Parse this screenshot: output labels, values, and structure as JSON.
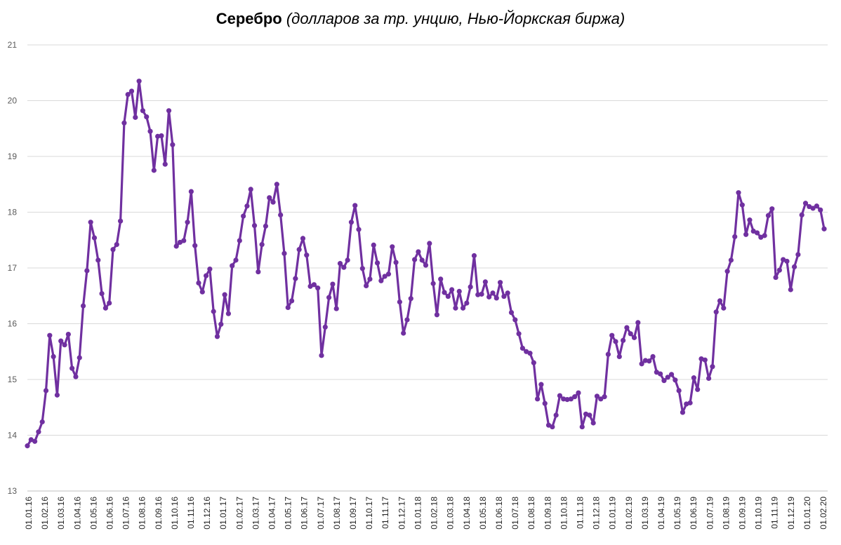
{
  "chart_data": {
    "type": "line",
    "title": "Серебро",
    "subtitle": "(долларов за тр. унцию, Нью-Йоркская биржа)",
    "xlabel": "",
    "ylabel": "",
    "ylim": [
      13,
      21
    ],
    "y_ticks": [
      "13",
      "14",
      "15",
      "16",
      "17",
      "18",
      "19",
      "20",
      "21"
    ],
    "grid": true,
    "legend": "none",
    "x_tick_labels": [
      "01.01.16",
      "01.02.16",
      "01.03.16",
      "01.04.16",
      "01.05.16",
      "01.06.16",
      "01.07.16",
      "01.08.16",
      "01.09.16",
      "01.10.16",
      "01.11.16",
      "01.12.16",
      "01.01.17",
      "01.02.17",
      "01.03.17",
      "01.04.17",
      "01.05.17",
      "01.06.17",
      "01.07.17",
      "01.08.17",
      "01.09.17",
      "01.10.17",
      "01.11.17",
      "01.12.17",
      "01.01.18",
      "01.02.18",
      "01.03.18",
      "01.04.18",
      "01.05.18",
      "01.06.18",
      "01.07.18",
      "01.08.18",
      "01.09.18",
      "01.10.18",
      "01.11.18",
      "01.12.18",
      "01.01.19",
      "01.02.19",
      "01.03.19",
      "01.04.19",
      "01.05.19",
      "01.06.19",
      "01.07.19",
      "01.08.19",
      "01.09.19",
      "01.10.19",
      "01.11.19",
      "01.12.19",
      "01.01.20",
      "01.02.20"
    ],
    "series": [
      {
        "name": "",
        "color": "#7030A0",
        "values": [
          13.81,
          13.92,
          13.89,
          14.06,
          14.24,
          14.8,
          15.79,
          15.41,
          14.72,
          15.69,
          15.62,
          15.81,
          15.2,
          15.05,
          15.39,
          16.32,
          16.95,
          17.82,
          17.54,
          17.14,
          16.54,
          16.28,
          16.37,
          17.33,
          17.42,
          17.84,
          19.6,
          20.11,
          20.17,
          19.7,
          20.35,
          19.82,
          19.71,
          19.45,
          18.75,
          19.36,
          19.37,
          18.86,
          19.82,
          19.21,
          17.39,
          17.46,
          17.49,
          17.82,
          18.37,
          17.4,
          16.73,
          16.57,
          16.86,
          16.98,
          16.22,
          15.77,
          15.99,
          16.52,
          16.18,
          17.04,
          17.14,
          17.49,
          17.93,
          18.11,
          18.41,
          17.76,
          16.93,
          17.42,
          17.75,
          18.26,
          18.18,
          18.5,
          17.95,
          17.26,
          16.29,
          16.41,
          16.81,
          17.33,
          17.53,
          17.23,
          16.67,
          16.7,
          16.64,
          15.43,
          15.94,
          16.47,
          16.71,
          16.27,
          17.08,
          17.01,
          17.14,
          17.82,
          18.12,
          17.69,
          16.99,
          16.68,
          16.8,
          17.41,
          17.09,
          16.77,
          16.85,
          16.89,
          17.38,
          17.1,
          16.39,
          15.83,
          16.07,
          16.45,
          17.15,
          17.29,
          17.14,
          17.05,
          17.44,
          16.72,
          16.16,
          16.8,
          16.56,
          16.49,
          16.61,
          16.28,
          16.58,
          16.28,
          16.37,
          16.66,
          17.22,
          16.52,
          16.53,
          16.75,
          16.48,
          16.55,
          16.46,
          16.74,
          16.49,
          16.55,
          16.2,
          16.07,
          15.82,
          15.56,
          15.5,
          15.47,
          15.3,
          14.65,
          14.91,
          14.57,
          14.18,
          14.15,
          14.36,
          14.71,
          14.65,
          14.64,
          14.65,
          14.69,
          14.76,
          14.15,
          14.38,
          14.36,
          14.22,
          14.7,
          14.65,
          14.69,
          15.45,
          15.79,
          15.68,
          15.41,
          15.7,
          15.93,
          15.82,
          15.75,
          16.02,
          15.28,
          15.34,
          15.33,
          15.41,
          15.13,
          15.1,
          14.98,
          15.04,
          15.09,
          14.99,
          14.8,
          14.41,
          14.56,
          14.58,
          15.03,
          14.82,
          15.37,
          15.35,
          15.02,
          15.23,
          16.21,
          16.41,
          16.28,
          16.94,
          17.14,
          17.56,
          18.35,
          18.13,
          17.6,
          17.86,
          17.66,
          17.63,
          17.55,
          17.58,
          17.94,
          18.06,
          16.83,
          16.96,
          17.15,
          17.12,
          16.61,
          17.02,
          17.24,
          17.95,
          18.16,
          18.1,
          18.07,
          18.11,
          18.04,
          17.7
        ]
      }
    ]
  }
}
